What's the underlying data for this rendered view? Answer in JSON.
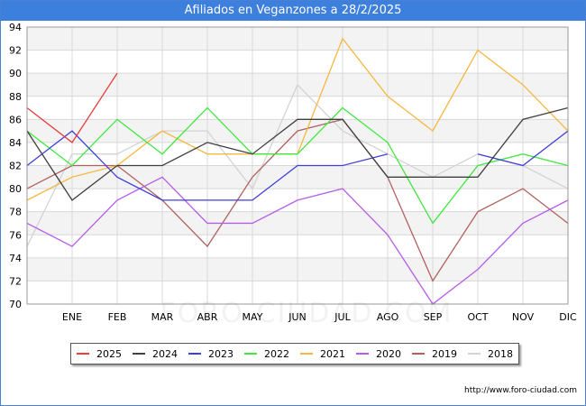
{
  "title": "Afiliados en Veganzones a 28/2/2025",
  "source": "http://www.foro-ciudad.com",
  "watermark": "FORO-CIUDAD.COM",
  "chart_data": {
    "type": "line",
    "title": "Afiliados en Veganzones a 28/2/2025",
    "categories": [
      "",
      "ENE",
      "FEB",
      "MAR",
      "ABR",
      "MAY",
      "JUN",
      "JUL",
      "AGO",
      "SEP",
      "OCT",
      "NOV",
      "DIC"
    ],
    "ylim": [
      70,
      94
    ],
    "yticks": [
      70,
      72,
      74,
      76,
      78,
      80,
      82,
      84,
      86,
      88,
      90,
      92,
      94
    ],
    "grid": true,
    "legend_position": "bottom",
    "series": [
      {
        "name": "2018",
        "color": "#d3d3d3",
        "values": [
          75,
          83,
          83,
          85,
          85,
          80,
          89,
          85,
          83,
          81,
          83,
          82,
          80
        ]
      },
      {
        "name": "2019",
        "color": "#b0615f",
        "values": [
          80,
          82,
          82,
          79,
          75,
          81,
          85,
          86,
          81,
          72,
          78,
          80,
          77
        ]
      },
      {
        "name": "2020",
        "color": "#b55de8",
        "values": [
          77,
          75,
          79,
          81,
          77,
          77,
          79,
          80,
          76,
          70,
          73,
          77,
          79
        ]
      },
      {
        "name": "2021",
        "color": "#f5b840",
        "values": [
          79,
          81,
          82,
          85,
          83,
          83,
          83,
          93,
          88,
          85,
          92,
          89,
          85
        ]
      },
      {
        "name": "2022",
        "color": "#40e840",
        "values": [
          85,
          82,
          86,
          83,
          87,
          83,
          83,
          87,
          84,
          77,
          82,
          83,
          82
        ]
      },
      {
        "name": "2023",
        "color": "#3f3fd8",
        "values": [
          82,
          85,
          81,
          79,
          79,
          79,
          82,
          82,
          83,
          null,
          83,
          82,
          85
        ]
      },
      {
        "name": "2024",
        "color": "#404040",
        "values": [
          85,
          79,
          82,
          82,
          84,
          83,
          86,
          86,
          81,
          81,
          81,
          86,
          87
        ]
      },
      {
        "name": "2025",
        "color": "#e83c3c",
        "values": [
          87,
          84,
          90,
          null,
          null,
          null,
          null,
          null,
          null,
          null,
          null,
          null,
          null
        ]
      }
    ],
    "legend_order": [
      "2025",
      "2024",
      "2023",
      "2022",
      "2021",
      "2020",
      "2019",
      "2018"
    ]
  }
}
